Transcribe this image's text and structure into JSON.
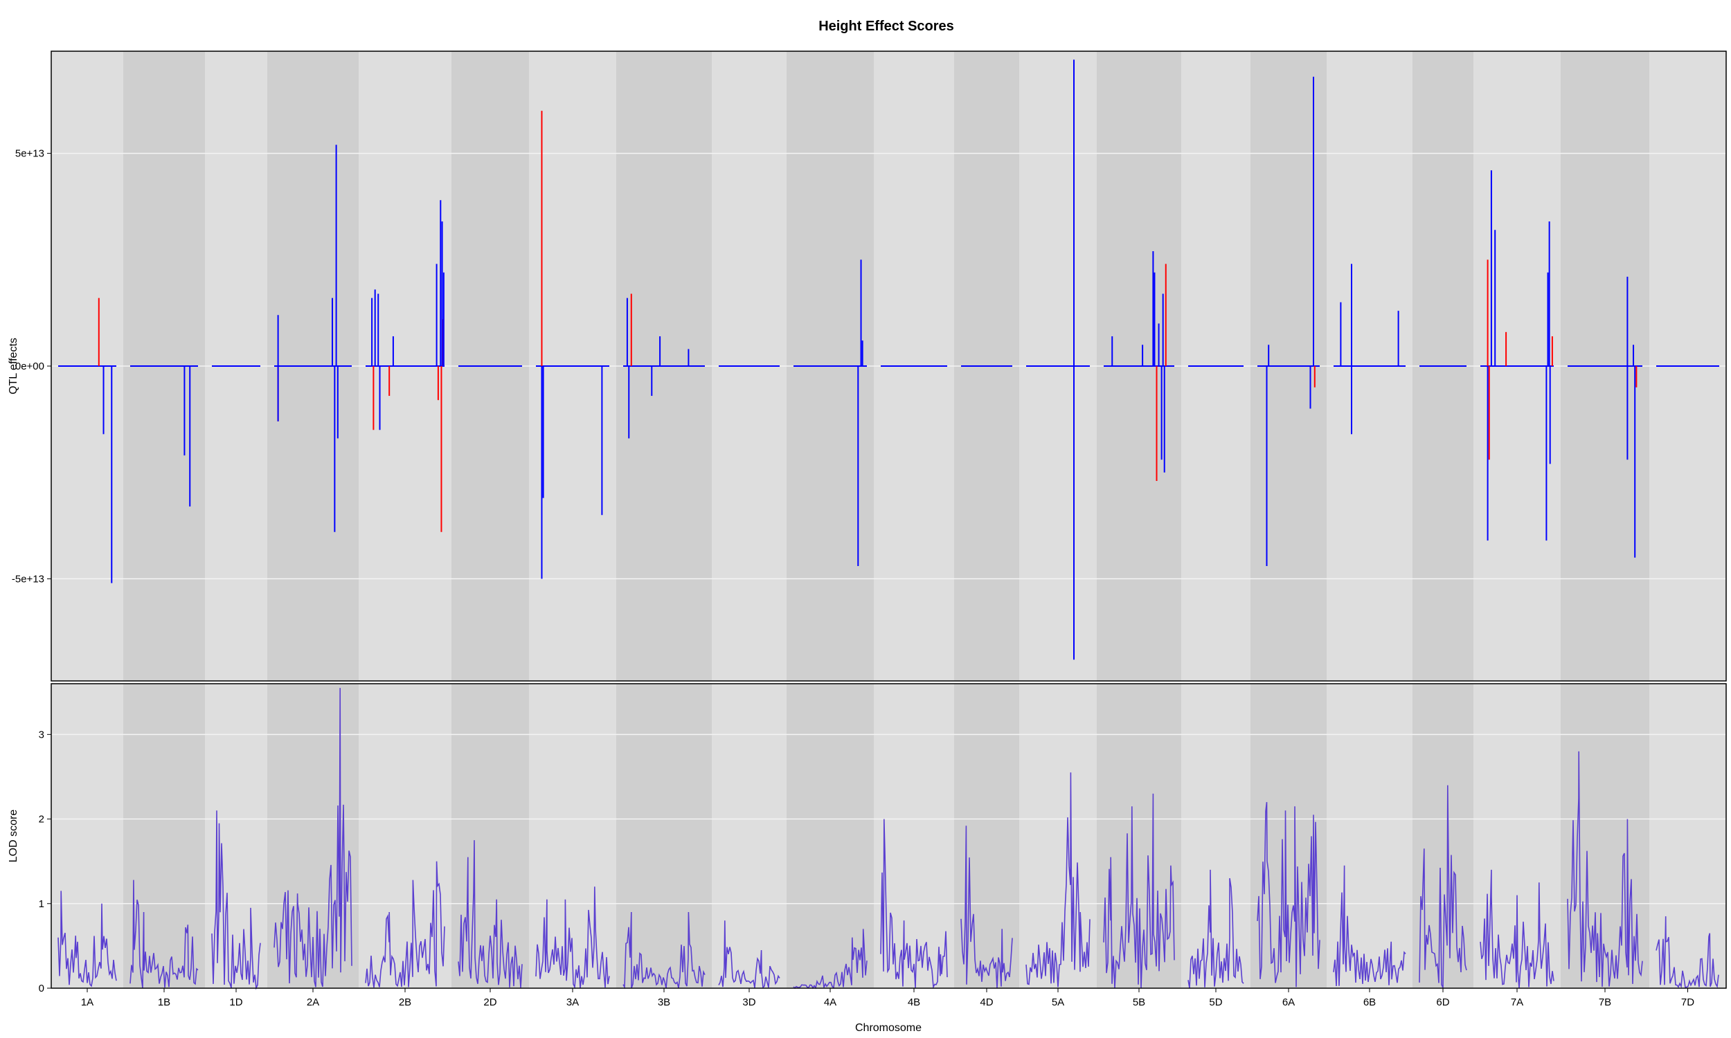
{
  "title": "Height Effect Scores",
  "xlabel": "Chromosome",
  "colors": {
    "band_light": "#dedede",
    "band_dark": "#cfcfcf",
    "grid": "#f4f4f4",
    "effect_positive_additive": "#0000ff",
    "effect_other": "#ff0000",
    "lod_line": "#5a3fd0"
  },
  "chromosomes": [
    "1A",
    "1B",
    "1D",
    "2A",
    "2B",
    "2D",
    "3A",
    "3B",
    "3D",
    "4A",
    "4B",
    "4D",
    "5A",
    "5B",
    "5D",
    "6A",
    "6B",
    "6D",
    "7A",
    "7B",
    "7D"
  ],
  "chart_data": [
    {
      "type": "line",
      "panel": "top",
      "ylabel": "QTL effects",
      "ytick_labels": [
        "5e+13",
        "0e+00",
        "-5e+13"
      ],
      "yticks": [
        50000000000000,
        0,
        -50000000000000
      ],
      "ylim": [
        -74000000000000,
        74000000000000
      ],
      "grid": true,
      "note_units": "spikes listed as [chromosome, approx fraction along chromosome, effect value]",
      "blue_series": [
        [
          "1A",
          0.78,
          -16000000000000
        ],
        [
          "1A",
          0.92,
          -51000000000000
        ],
        [
          "1B",
          0.8,
          -21000000000000
        ],
        [
          "1B",
          0.88,
          -33000000000000
        ],
        [
          "2A",
          0.05,
          12000000000000
        ],
        [
          "2A",
          0.05,
          -13000000000000
        ],
        [
          "2A",
          0.75,
          16000000000000
        ],
        [
          "2A",
          0.78,
          -39000000000000
        ],
        [
          "2A",
          0.8,
          52000000000000
        ],
        [
          "2A",
          0.82,
          -17000000000000
        ],
        [
          "2B",
          0.08,
          16000000000000
        ],
        [
          "2B",
          0.12,
          18000000000000
        ],
        [
          "2B",
          0.16,
          17000000000000
        ],
        [
          "2B",
          0.18,
          -15000000000000
        ],
        [
          "2B",
          0.35,
          7000000000000
        ],
        [
          "2B",
          0.9,
          24000000000000
        ],
        [
          "2B",
          0.95,
          39000000000000
        ],
        [
          "2B",
          0.97,
          34000000000000
        ],
        [
          "2B",
          0.99,
          22000000000000
        ],
        [
          "3A",
          0.08,
          -50000000000000
        ],
        [
          "3A",
          0.1,
          -31000000000000
        ],
        [
          "3A",
          0.9,
          -35000000000000
        ],
        [
          "3B",
          0.05,
          16000000000000
        ],
        [
          "3B",
          0.07,
          -17000000000000
        ],
        [
          "3B",
          0.45,
          7000000000000
        ],
        [
          "3B",
          0.35,
          -7000000000000
        ],
        [
          "3B",
          0.8,
          4000000000000
        ],
        [
          "4A",
          0.88,
          -47000000000000
        ],
        [
          "4A",
          0.92,
          25000000000000
        ],
        [
          "4A",
          0.94,
          6000000000000
        ],
        [
          "5A",
          0.75,
          72000000000000
        ],
        [
          "5A",
          0.75,
          -69000000000000
        ],
        [
          "5B",
          0.12,
          7000000000000
        ],
        [
          "5B",
          0.55,
          5000000000000
        ],
        [
          "5B",
          0.7,
          27000000000000
        ],
        [
          "5B",
          0.72,
          22000000000000
        ],
        [
          "5B",
          0.78,
          10000000000000
        ],
        [
          "5B",
          0.82,
          -22000000000000
        ],
        [
          "5B",
          0.84,
          17000000000000
        ],
        [
          "5B",
          0.86,
          -25000000000000
        ],
        [
          "6A",
          0.15,
          -47000000000000
        ],
        [
          "6A",
          0.18,
          5000000000000
        ],
        [
          "6A",
          0.85,
          -10000000000000
        ],
        [
          "6A",
          0.9,
          68000000000000
        ],
        [
          "6B",
          0.1,
          15000000000000
        ],
        [
          "6B",
          0.25,
          24000000000000
        ],
        [
          "6B",
          0.25,
          -16000000000000
        ],
        [
          "6B",
          0.9,
          13000000000000
        ],
        [
          "7A",
          0.1,
          -41000000000000
        ],
        [
          "7A",
          0.15,
          46000000000000
        ],
        [
          "7A",
          0.2,
          32000000000000
        ],
        [
          "7A",
          1.2,
          -41000000000000
        ],
        [
          "7A",
          1.22,
          22000000000000
        ],
        [
          "7A",
          1.24,
          34000000000000
        ],
        [
          "7A",
          1.25,
          -23000000000000
        ],
        [
          "7B",
          0.8,
          -22000000000000
        ],
        [
          "7B",
          0.8,
          21000000000000
        ],
        [
          "7B",
          0.88,
          5000000000000
        ],
        [
          "7B",
          0.9,
          -45000000000000
        ]
      ],
      "red_series": [
        [
          "1A",
          0.7,
          16000000000000
        ],
        [
          "2A",
          0.05,
          -13000000000000
        ],
        [
          "2B",
          0.1,
          -15000000000000
        ],
        [
          "2B",
          0.3,
          -7000000000000
        ],
        [
          "2B",
          0.92,
          -8000000000000
        ],
        [
          "2B",
          0.96,
          -39000000000000
        ],
        [
          "2B",
          0.98,
          11000000000000
        ],
        [
          "3A",
          0.08,
          60000000000000
        ],
        [
          "3B",
          0.1,
          17000000000000
        ],
        [
          "5B",
          0.75,
          -27000000000000
        ],
        [
          "5B",
          0.88,
          24000000000000
        ],
        [
          "6A",
          0.92,
          -5000000000000
        ],
        [
          "7A",
          0.1,
          25000000000000
        ],
        [
          "7A",
          0.12,
          -22000000000000
        ],
        [
          "7A",
          0.35,
          8000000000000
        ],
        [
          "7A",
          1.28,
          7000000000000
        ],
        [
          "7B",
          0.92,
          -5000000000000
        ]
      ]
    },
    {
      "type": "line",
      "panel": "bottom",
      "ylabel": "LOD score",
      "ytick_labels": [
        "0",
        "1",
        "2",
        "3"
      ],
      "yticks": [
        0,
        1,
        2,
        3
      ],
      "ylim": [
        0,
        3.6
      ],
      "grid": true,
      "note_units": "LOD peaks listed as [chromosome, approx fraction along chromosome, LOD value]",
      "peaks": [
        [
          "1A",
          0.05,
          1.15
        ],
        [
          "1A",
          0.3,
          0.62
        ],
        [
          "1A",
          0.75,
          1.0
        ],
        [
          "1B",
          0.05,
          1.28
        ],
        [
          "1B",
          0.2,
          0.9
        ],
        [
          "1B",
          0.85,
          0.75
        ],
        [
          "1D",
          0.1,
          2.1
        ],
        [
          "1D",
          0.15,
          1.95
        ],
        [
          "1D",
          0.8,
          0.95
        ],
        [
          "2A",
          0.3,
          1.12
        ],
        [
          "2A",
          0.85,
          3.55
        ],
        [
          "2A",
          0.9,
          1.6
        ],
        [
          "2B",
          0.3,
          0.9
        ],
        [
          "2B",
          0.6,
          1.28
        ],
        [
          "2B",
          0.9,
          1.5
        ],
        [
          "2D",
          0.15,
          1.55
        ],
        [
          "2D",
          0.25,
          1.75
        ],
        [
          "2D",
          0.6,
          1.05
        ],
        [
          "3A",
          0.15,
          1.05
        ],
        [
          "3A",
          0.4,
          1.05
        ],
        [
          "3A",
          0.8,
          1.2
        ],
        [
          "3B",
          0.1,
          0.9
        ],
        [
          "3B",
          0.8,
          0.9
        ],
        [
          "3D",
          0.1,
          0.8
        ],
        [
          "3D",
          0.7,
          0.45
        ],
        [
          "4A",
          0.8,
          0.6
        ],
        [
          "4A",
          0.95,
          0.7
        ],
        [
          "4B",
          0.05,
          2.0
        ],
        [
          "4B",
          0.35,
          0.8
        ],
        [
          "4B",
          0.9,
          0.4
        ],
        [
          "4D",
          0.1,
          1.92
        ],
        [
          "4D",
          0.8,
          0.7
        ],
        [
          "5A",
          0.7,
          2.55
        ],
        [
          "5A",
          0.85,
          0.9
        ],
        [
          "5B",
          0.1,
          1.55
        ],
        [
          "5B",
          0.4,
          2.15
        ],
        [
          "5B",
          0.7,
          2.3
        ],
        [
          "5B",
          0.95,
          1.45
        ],
        [
          "5D",
          0.4,
          1.4
        ],
        [
          "5D",
          0.75,
          1.3
        ],
        [
          "6A",
          0.15,
          2.2
        ],
        [
          "6A",
          0.45,
          2.1
        ],
        [
          "6A",
          0.6,
          2.15
        ],
        [
          "6A",
          0.9,
          2.05
        ],
        [
          "6B",
          0.15,
          1.45
        ],
        [
          "6B",
          0.8,
          0.55
        ],
        [
          "6D",
          0.1,
          1.65
        ],
        [
          "6D",
          0.6,
          2.4
        ],
        [
          "7A",
          0.15,
          1.4
        ],
        [
          "7A",
          0.5,
          1.1
        ],
        [
          "7A",
          0.8,
          1.25
        ],
        [
          "7B",
          0.15,
          2.8
        ],
        [
          "7B",
          0.4,
          0.65
        ],
        [
          "7B",
          0.8,
          2.0
        ],
        [
          "7D",
          0.15,
          0.85
        ],
        [
          "7D",
          0.85,
          0.65
        ]
      ]
    }
  ]
}
